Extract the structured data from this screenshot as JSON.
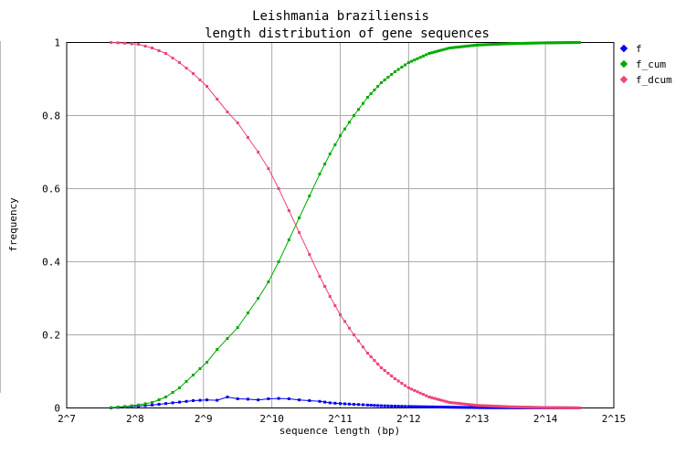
{
  "chart_data": {
    "type": "line",
    "title": "Leishmania braziliensis",
    "subtitle": "length distribution of gene sequences",
    "xlabel": "sequence length (bp)",
    "ylabel": "frequency",
    "x_scale": "log2",
    "xlim_log2": [
      7,
      15
    ],
    "ylim": [
      0,
      1
    ],
    "grid": true,
    "legend_position": "right-top",
    "x_tick_labels": [
      "2^7",
      "2^8",
      "2^9",
      "2^10",
      "2^11",
      "2^12",
      "2^13",
      "2^14",
      "2^15"
    ],
    "y_tick_labels": [
      "0",
      "0.2",
      "0.4",
      "0.6",
      "0.8",
      "1"
    ],
    "y_ticks": [
      0,
      0.2,
      0.4,
      0.6,
      0.8,
      1
    ],
    "series": [
      {
        "name": "f",
        "color": "#0000ee",
        "points": [
          [
            7.65,
            0.0
          ],
          [
            7.85,
            0.003
          ],
          [
            8.05,
            0.005
          ],
          [
            8.25,
            0.008
          ],
          [
            8.45,
            0.012
          ],
          [
            8.65,
            0.016
          ],
          [
            8.85,
            0.02
          ],
          [
            9.05,
            0.022
          ],
          [
            9.2,
            0.021
          ],
          [
            9.35,
            0.03
          ],
          [
            9.5,
            0.025
          ],
          [
            9.65,
            0.024
          ],
          [
            9.8,
            0.022
          ],
          [
            9.95,
            0.025
          ],
          [
            10.1,
            0.026
          ],
          [
            10.25,
            0.025
          ],
          [
            10.4,
            0.022
          ],
          [
            10.55,
            0.02
          ],
          [
            10.7,
            0.018
          ],
          [
            10.85,
            0.014
          ],
          [
            11.0,
            0.012
          ],
          [
            11.2,
            0.01
          ],
          [
            11.4,
            0.008
          ],
          [
            11.6,
            0.006
          ],
          [
            11.8,
            0.005
          ],
          [
            12.0,
            0.004
          ],
          [
            12.3,
            0.003
          ],
          [
            12.6,
            0.002
          ],
          [
            13.0,
            0.001
          ],
          [
            13.5,
            0.0005
          ],
          [
            14.0,
            0.0003
          ],
          [
            14.5,
            0.0001
          ]
        ]
      },
      {
        "name": "f_cum",
        "color": "#00aa00",
        "points": [
          [
            7.65,
            0.001
          ],
          [
            7.85,
            0.004
          ],
          [
            8.05,
            0.008
          ],
          [
            8.25,
            0.015
          ],
          [
            8.45,
            0.03
          ],
          [
            8.65,
            0.055
          ],
          [
            8.85,
            0.09
          ],
          [
            9.05,
            0.125
          ],
          [
            9.2,
            0.16
          ],
          [
            9.35,
            0.19
          ],
          [
            9.5,
            0.22
          ],
          [
            9.65,
            0.26
          ],
          [
            9.8,
            0.3
          ],
          [
            9.95,
            0.345
          ],
          [
            10.1,
            0.4
          ],
          [
            10.25,
            0.46
          ],
          [
            10.4,
            0.52
          ],
          [
            10.55,
            0.58
          ],
          [
            10.7,
            0.64
          ],
          [
            10.85,
            0.695
          ],
          [
            11.0,
            0.745
          ],
          [
            11.2,
            0.8
          ],
          [
            11.4,
            0.85
          ],
          [
            11.6,
            0.89
          ],
          [
            11.8,
            0.92
          ],
          [
            12.0,
            0.945
          ],
          [
            12.3,
            0.97
          ],
          [
            12.6,
            0.985
          ],
          [
            13.0,
            0.993
          ],
          [
            13.5,
            0.997
          ],
          [
            14.0,
            0.999
          ],
          [
            14.5,
            1.0
          ]
        ]
      },
      {
        "name": "f_dcum",
        "color": "#ee4477",
        "points": [
          [
            7.65,
            1.0
          ],
          [
            7.85,
            0.998
          ],
          [
            8.05,
            0.995
          ],
          [
            8.25,
            0.985
          ],
          [
            8.45,
            0.97
          ],
          [
            8.65,
            0.945
          ],
          [
            8.85,
            0.915
          ],
          [
            9.05,
            0.88
          ],
          [
            9.2,
            0.845
          ],
          [
            9.35,
            0.81
          ],
          [
            9.5,
            0.78
          ],
          [
            9.65,
            0.74
          ],
          [
            9.8,
            0.7
          ],
          [
            9.95,
            0.655
          ],
          [
            10.1,
            0.6
          ],
          [
            10.25,
            0.54
          ],
          [
            10.4,
            0.48
          ],
          [
            10.55,
            0.42
          ],
          [
            10.7,
            0.36
          ],
          [
            10.85,
            0.305
          ],
          [
            11.0,
            0.255
          ],
          [
            11.2,
            0.2
          ],
          [
            11.4,
            0.15
          ],
          [
            11.6,
            0.11
          ],
          [
            11.8,
            0.08
          ],
          [
            12.0,
            0.055
          ],
          [
            12.3,
            0.03
          ],
          [
            12.6,
            0.015
          ],
          [
            13.0,
            0.007
          ],
          [
            13.5,
            0.003
          ],
          [
            14.0,
            0.001
          ],
          [
            14.5,
            0.0
          ]
        ]
      }
    ]
  }
}
